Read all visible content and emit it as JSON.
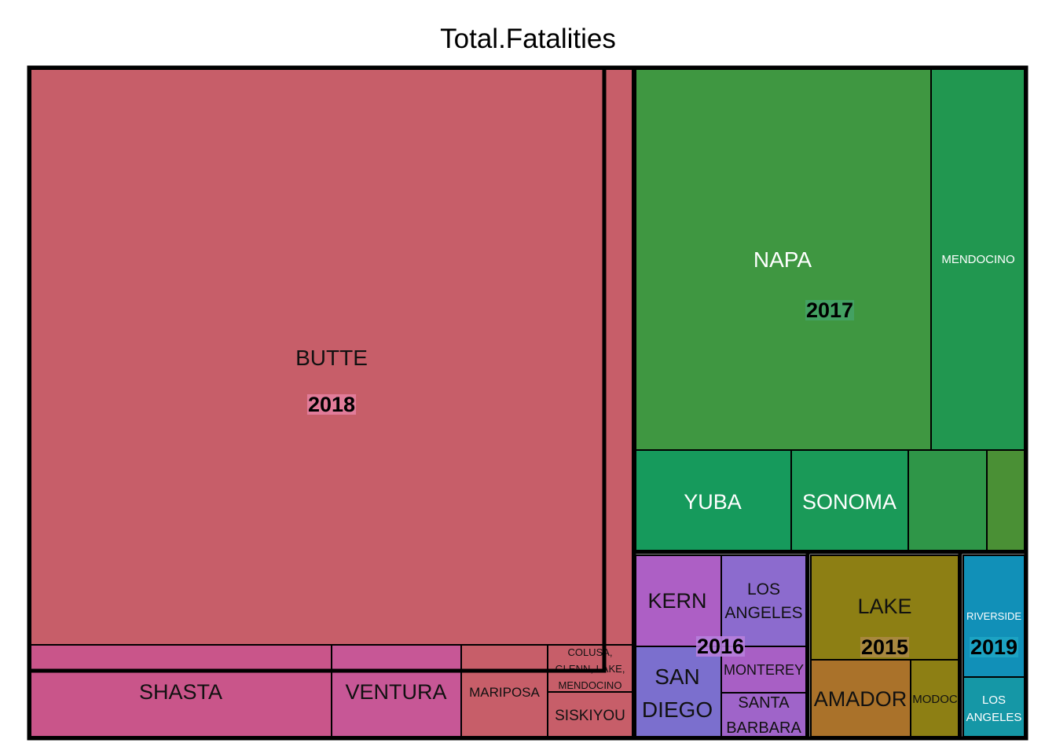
{
  "chart_data": {
    "type": "treemap",
    "title": "Total.Fatalities",
    "groups": [
      {
        "name": "2018",
        "label_bg": "#e37fa0",
        "leaves": [
          {
            "name": "BUTTE",
            "value": 86,
            "color": "#c75e69",
            "text_color": "#111111"
          },
          {
            "name": "SHASTA",
            "value": 8,
            "color": "#c9558a",
            "text_color": "#111111"
          },
          {
            "name": "VENTURA",
            "value": 3,
            "color": "#c75796",
            "text_color": "#111111"
          },
          {
            "name": "MARIPOSA",
            "value": 2,
            "color": "#c75e69",
            "text_color": "#111111"
          },
          {
            "name": "COLUSA, GLENN, LAKE, MENDOCINO",
            "value": 1,
            "color": "#c75e69",
            "text_color": "#111111"
          },
          {
            "name": "SISKIYOU",
            "value": 1,
            "color": "#c75e69",
            "text_color": "#111111"
          }
        ]
      },
      {
        "name": "2017",
        "label_bg": "#44a266",
        "leaves": [
          {
            "name": "NAPA",
            "value": 22,
            "color": "#3f9741",
            "text_color": "#ffffff"
          },
          {
            "name": "MENDOCINO",
            "value": 9,
            "color": "#219750",
            "text_color": "#ffffff"
          },
          {
            "name": "YUBA",
            "value": 4,
            "color": "#169a5c",
            "text_color": "#ffffff"
          },
          {
            "name": "SONOMA",
            "value": 4,
            "color": "#1a9a58",
            "text_color": "#ffffff"
          },
          {
            "name": "",
            "value": 2,
            "color": "#2f9648",
            "text_color": "#ffffff"
          },
          {
            "name": "",
            "value": 1,
            "color": "#4a9035",
            "text_color": "#ffffff"
          }
        ]
      },
      {
        "name": "2016",
        "label_bg": "#b77fdd",
        "leaves": [
          {
            "name": "KERN",
            "value": 2,
            "color": "#ad5fc5",
            "text_color": "#111111"
          },
          {
            "name": "LOS ANGELES",
            "value": 2,
            "color": "#8c6bce",
            "text_color": "#111111"
          },
          {
            "name": "SAN DIEGO",
            "value": 2,
            "color": "#7b6fce",
            "text_color": "#111111"
          },
          {
            "name": "MONTEREY",
            "value": 1,
            "color": "#a85fc5",
            "text_color": "#111111"
          },
          {
            "name": "SANTA BARBARA",
            "value": 1,
            "color": "#9f64c9",
            "text_color": "#111111"
          }
        ]
      },
      {
        "name": "2015",
        "label_bg": "#ab8a44",
        "leaves": [
          {
            "name": "LAKE",
            "value": 4,
            "color": "#8d7f14",
            "text_color": "#111111"
          },
          {
            "name": "AMADOR",
            "value": 2,
            "color": "#aa722a",
            "text_color": "#111111"
          },
          {
            "name": "MODOC",
            "value": 1,
            "color": "#8d7f14",
            "text_color": "#111111"
          }
        ]
      },
      {
        "name": "2019",
        "label_bg": "#1ea5c4",
        "leaves": [
          {
            "name": "RIVERSIDE",
            "value": 2,
            "color": "#1190b8",
            "text_color": "#ffffff"
          },
          {
            "name": "LOS ANGELES",
            "value": 1,
            "color": "#1597a6",
            "text_color": "#ffffff"
          }
        ]
      }
    ]
  }
}
